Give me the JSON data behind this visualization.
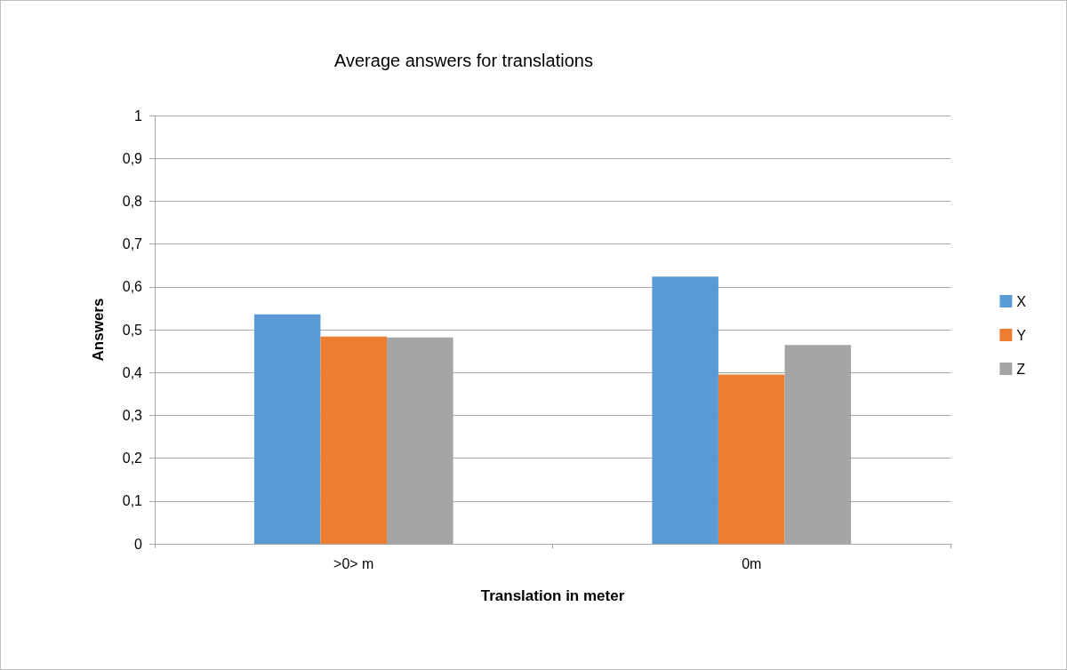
{
  "chart_data": {
    "type": "bar",
    "title": "Average answers for translations",
    "xlabel": "Translation in meter",
    "ylabel": "Answers",
    "categories": [
      ">0> m",
      "0m"
    ],
    "series": [
      {
        "name": "X",
        "color": "#5b9bd5",
        "values": [
          0.536,
          0.624
        ]
      },
      {
        "name": "Y",
        "color": "#ed7d31",
        "values": [
          0.484,
          0.395
        ]
      },
      {
        "name": "Z",
        "color": "#a5a5a5",
        "values": [
          0.482,
          0.464
        ]
      }
    ],
    "ylim": [
      0,
      1
    ],
    "yticks": [
      0,
      {
        "value": 0.1,
        "label": "0,1"
      },
      {
        "value": 0.2,
        "label": "0,2"
      },
      {
        "value": 0.3,
        "label": "0,3"
      },
      {
        "value": 0.4,
        "label": "0,4"
      },
      {
        "value": 0.5,
        "label": "0,5"
      },
      {
        "value": 0.6,
        "label": "0,6"
      },
      {
        "value": 0.7,
        "label": "0,7"
      },
      {
        "value": 0.8,
        "label": "0,8"
      },
      {
        "value": 0.9,
        "label": "0,9"
      },
      1
    ],
    "grid": "y",
    "legend": "right"
  }
}
